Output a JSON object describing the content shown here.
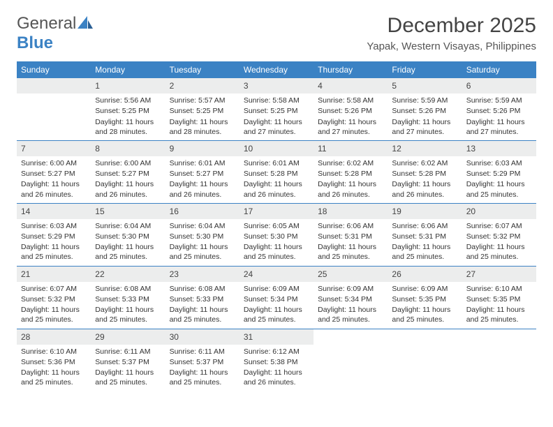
{
  "brand": {
    "part1": "General",
    "part2": "Blue"
  },
  "title": "December 2025",
  "location": "Yapak, Western Visayas, Philippines",
  "colors": {
    "header_bg": "#3b82c4",
    "daynum_bg": "#eceded",
    "week_border": "#3b82c4",
    "text": "#333333"
  },
  "day_names": [
    "Sunday",
    "Monday",
    "Tuesday",
    "Wednesday",
    "Thursday",
    "Friday",
    "Saturday"
  ],
  "start_offset": 1,
  "days": [
    {
      "n": 1,
      "sunrise": "5:56 AM",
      "sunset": "5:25 PM",
      "dl": "11 hours and 28 minutes."
    },
    {
      "n": 2,
      "sunrise": "5:57 AM",
      "sunset": "5:25 PM",
      "dl": "11 hours and 28 minutes."
    },
    {
      "n": 3,
      "sunrise": "5:58 AM",
      "sunset": "5:25 PM",
      "dl": "11 hours and 27 minutes."
    },
    {
      "n": 4,
      "sunrise": "5:58 AM",
      "sunset": "5:26 PM",
      "dl": "11 hours and 27 minutes."
    },
    {
      "n": 5,
      "sunrise": "5:59 AM",
      "sunset": "5:26 PM",
      "dl": "11 hours and 27 minutes."
    },
    {
      "n": 6,
      "sunrise": "5:59 AM",
      "sunset": "5:26 PM",
      "dl": "11 hours and 27 minutes."
    },
    {
      "n": 7,
      "sunrise": "6:00 AM",
      "sunset": "5:27 PM",
      "dl": "11 hours and 26 minutes."
    },
    {
      "n": 8,
      "sunrise": "6:00 AM",
      "sunset": "5:27 PM",
      "dl": "11 hours and 26 minutes."
    },
    {
      "n": 9,
      "sunrise": "6:01 AM",
      "sunset": "5:27 PM",
      "dl": "11 hours and 26 minutes."
    },
    {
      "n": 10,
      "sunrise": "6:01 AM",
      "sunset": "5:28 PM",
      "dl": "11 hours and 26 minutes."
    },
    {
      "n": 11,
      "sunrise": "6:02 AM",
      "sunset": "5:28 PM",
      "dl": "11 hours and 26 minutes."
    },
    {
      "n": 12,
      "sunrise": "6:02 AM",
      "sunset": "5:28 PM",
      "dl": "11 hours and 26 minutes."
    },
    {
      "n": 13,
      "sunrise": "6:03 AM",
      "sunset": "5:29 PM",
      "dl": "11 hours and 25 minutes."
    },
    {
      "n": 14,
      "sunrise": "6:03 AM",
      "sunset": "5:29 PM",
      "dl": "11 hours and 25 minutes."
    },
    {
      "n": 15,
      "sunrise": "6:04 AM",
      "sunset": "5:30 PM",
      "dl": "11 hours and 25 minutes."
    },
    {
      "n": 16,
      "sunrise": "6:04 AM",
      "sunset": "5:30 PM",
      "dl": "11 hours and 25 minutes."
    },
    {
      "n": 17,
      "sunrise": "6:05 AM",
      "sunset": "5:30 PM",
      "dl": "11 hours and 25 minutes."
    },
    {
      "n": 18,
      "sunrise": "6:06 AM",
      "sunset": "5:31 PM",
      "dl": "11 hours and 25 minutes."
    },
    {
      "n": 19,
      "sunrise": "6:06 AM",
      "sunset": "5:31 PM",
      "dl": "11 hours and 25 minutes."
    },
    {
      "n": 20,
      "sunrise": "6:07 AM",
      "sunset": "5:32 PM",
      "dl": "11 hours and 25 minutes."
    },
    {
      "n": 21,
      "sunrise": "6:07 AM",
      "sunset": "5:32 PM",
      "dl": "11 hours and 25 minutes."
    },
    {
      "n": 22,
      "sunrise": "6:08 AM",
      "sunset": "5:33 PM",
      "dl": "11 hours and 25 minutes."
    },
    {
      "n": 23,
      "sunrise": "6:08 AM",
      "sunset": "5:33 PM",
      "dl": "11 hours and 25 minutes."
    },
    {
      "n": 24,
      "sunrise": "6:09 AM",
      "sunset": "5:34 PM",
      "dl": "11 hours and 25 minutes."
    },
    {
      "n": 25,
      "sunrise": "6:09 AM",
      "sunset": "5:34 PM",
      "dl": "11 hours and 25 minutes."
    },
    {
      "n": 26,
      "sunrise": "6:09 AM",
      "sunset": "5:35 PM",
      "dl": "11 hours and 25 minutes."
    },
    {
      "n": 27,
      "sunrise": "6:10 AM",
      "sunset": "5:35 PM",
      "dl": "11 hours and 25 minutes."
    },
    {
      "n": 28,
      "sunrise": "6:10 AM",
      "sunset": "5:36 PM",
      "dl": "11 hours and 25 minutes."
    },
    {
      "n": 29,
      "sunrise": "6:11 AM",
      "sunset": "5:37 PM",
      "dl": "11 hours and 25 minutes."
    },
    {
      "n": 30,
      "sunrise": "6:11 AM",
      "sunset": "5:37 PM",
      "dl": "11 hours and 25 minutes."
    },
    {
      "n": 31,
      "sunrise": "6:12 AM",
      "sunset": "5:38 PM",
      "dl": "11 hours and 26 minutes."
    }
  ],
  "labels": {
    "sunrise": "Sunrise:",
    "sunset": "Sunset:",
    "daylight": "Daylight:"
  }
}
